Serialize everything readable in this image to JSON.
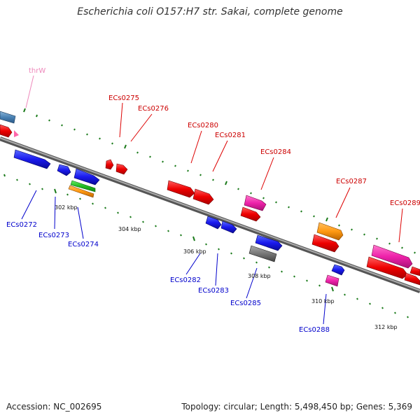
{
  "title": "Escherichia coli O157:H7 str. Sakai, complete genome",
  "footer": {
    "accession": "Accession: NC_002695",
    "summary": "Topology: circular; Length: 5,498,450 bp; Genes: 5,369"
  },
  "colors": {
    "backbone": "#888888",
    "tick": "#1a7a1a",
    "label_top": "#cc0000",
    "label_bottom": "#0000cc",
    "trna_label": "#ee88bb"
  },
  "scale_labels": [
    "302 kbp",
    "304 kbp",
    "306 kbp",
    "308 kbp",
    "310 kbp",
    "312 kbp"
  ],
  "gene_labels_top": [
    "thrW",
    "ECs0275",
    "ECs0276",
    "ECs0280",
    "ECs0281",
    "ECs0284",
    "ECs0287",
    "ECs0289"
  ],
  "gene_labels_bottom": [
    "ECs0272",
    "ECs0273",
    "ECs0274",
    "ECs0282",
    "ECs0283",
    "ECs0285",
    "ECs0288"
  ]
}
